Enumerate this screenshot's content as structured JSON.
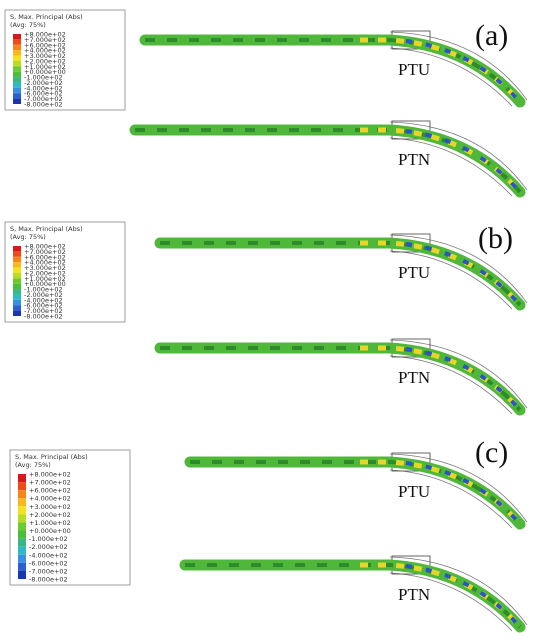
{
  "panels": [
    {
      "label": "(a)",
      "legend": {
        "title": "S, Max. Principal (Abs)",
        "subtitle": "(Avg: 75%)",
        "levels": [
          "+8.000e+02",
          "+7.000e+02",
          "+6.000e+02",
          "+4.000e+02",
          "+3.000e+02",
          "+2.000e+02",
          "+1.000e+02",
          "+0.000e+00",
          "-1.000e+02",
          "-2.000e+02",
          "-4.000e+02",
          "-6.000e+02",
          "-7.000e+02",
          "-8.000e+02"
        ]
      },
      "files": [
        "PTU",
        "PTN"
      ]
    },
    {
      "label": "(b)",
      "legend": {
        "title": "S, Max. Principal (Abs)",
        "subtitle": "(Avg: 75%)",
        "levels": [
          "+8.000e+02",
          "+7.000e+02",
          "+6.000e+02",
          "+4.000e+02",
          "+3.000e+02",
          "+2.000e+02",
          "+1.000e+02",
          "+0.000e+00",
          "-1.000e+02",
          "-2.000e+02",
          "-4.000e+02",
          "-6.000e+02",
          "-7.000e+02",
          "-8.000e+02"
        ]
      },
      "files": [
        "PTU",
        "PTN"
      ]
    },
    {
      "label": "(c)",
      "legend": {
        "title": "S, Max. Principal (Abs)",
        "subtitle": "(Avg: 75%)",
        "levels": [
          "+8.000e+02",
          "+7.000e+02",
          "+6.000e+02",
          "+4.000e+02",
          "+3.000e+02",
          "+2.000e+02",
          "+1.000e+02",
          "+0.000e+00",
          "-1.000e+02",
          "-2.000e+02",
          "-4.000e+02",
          "-6.000e+02",
          "-7.000e+02",
          "-8.000e+02"
        ]
      },
      "files": [
        "PTU",
        "PTN"
      ]
    }
  ]
}
